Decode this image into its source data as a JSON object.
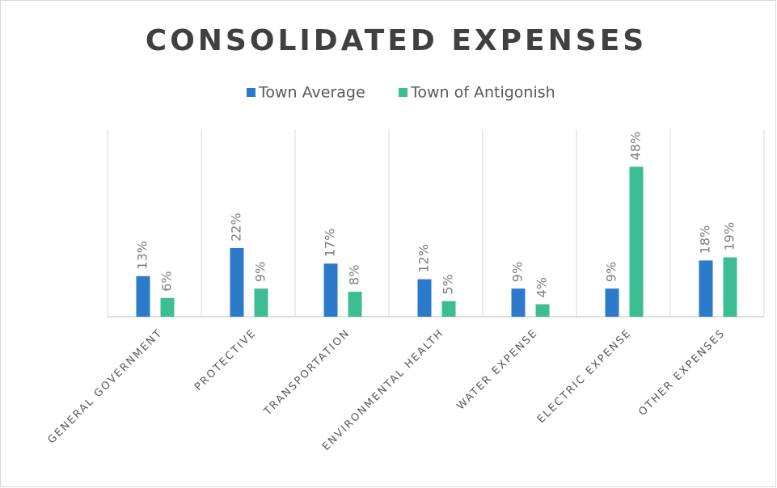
{
  "chart_data": {
    "type": "bar",
    "title": "CONSOLIDATED EXPENSES",
    "categories": [
      "GENERAL GOVERNMENT",
      "PROTECTIVE",
      "TRANSPORTATION",
      "ENVIRONMENTAL HEALTH",
      "WATER EXPENSE",
      "ELECTRIC EXPENSE",
      "OTHER EXPENSES"
    ],
    "series": [
      {
        "name": "Town Average",
        "color": "#2b7bca",
        "values": [
          13,
          22,
          17,
          12,
          9,
          9,
          18
        ],
        "value_labels": [
          "13%",
          "22%",
          "17%",
          "12%",
          "9%",
          "9%",
          "18%"
        ]
      },
      {
        "name": "Town of Antigonish",
        "color": "#3dbd93",
        "values": [
          6,
          9,
          8,
          5,
          4,
          48,
          19
        ],
        "value_labels": [
          "6%",
          "9%",
          "8%",
          "5%",
          "4%",
          "48%",
          "19%"
        ]
      }
    ],
    "ylim": [
      0,
      60
    ]
  }
}
